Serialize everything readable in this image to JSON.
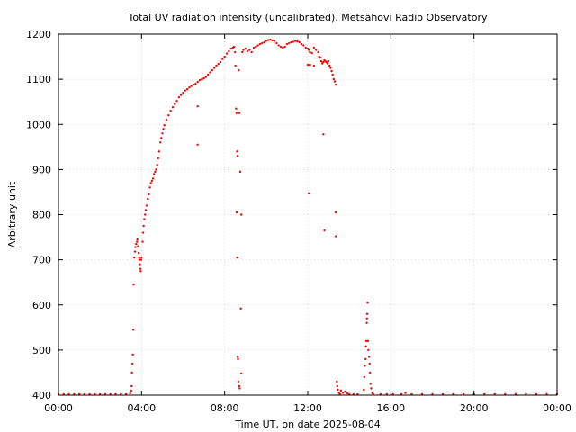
{
  "chart_data": {
    "type": "scatter",
    "title": "Total UV radiation intensity (uncalibrated). Metsähovi Radio Observatory",
    "xlabel": "Time UT, on date 2025-08-04",
    "ylabel": "Arbitrary unit",
    "xlim": [
      0,
      24
    ],
    "ylim": [
      400,
      1200
    ],
    "x_ticks": [
      {
        "value": 0,
        "label": "00:00"
      },
      {
        "value": 4,
        "label": "04:00"
      },
      {
        "value": 8,
        "label": "08:00"
      },
      {
        "value": 12,
        "label": "12:00"
      },
      {
        "value": 16,
        "label": "16:00"
      },
      {
        "value": 20,
        "label": "20:00"
      },
      {
        "value": 24,
        "label": "00:00"
      }
    ],
    "y_ticks": [
      400,
      500,
      600,
      700,
      800,
      900,
      1000,
      1100,
      1200
    ],
    "grid": true,
    "series": [
      {
        "color": "#ff0000",
        "points": [
          [
            0.0,
            402
          ],
          [
            0.25,
            402
          ],
          [
            0.5,
            402
          ],
          [
            0.75,
            402
          ],
          [
            1.0,
            402
          ],
          [
            1.25,
            402
          ],
          [
            1.5,
            402
          ],
          [
            1.75,
            402
          ],
          [
            2.0,
            402
          ],
          [
            2.25,
            402
          ],
          [
            2.5,
            402
          ],
          [
            2.75,
            402
          ],
          [
            3.0,
            402
          ],
          [
            3.25,
            402
          ],
          [
            3.45,
            404
          ],
          [
            3.5,
            410
          ],
          [
            3.52,
            420
          ],
          [
            3.54,
            450
          ],
          [
            3.56,
            470
          ],
          [
            3.58,
            490
          ],
          [
            3.6,
            545
          ],
          [
            3.62,
            645
          ],
          [
            3.65,
            705
          ],
          [
            3.68,
            718
          ],
          [
            3.7,
            728
          ],
          [
            3.74,
            735
          ],
          [
            3.78,
            740
          ],
          [
            3.8,
            745
          ],
          [
            3.83,
            730
          ],
          [
            3.86,
            715
          ],
          [
            3.88,
            705
          ],
          [
            3.9,
            700
          ],
          [
            3.92,
            690
          ],
          [
            3.94,
            680
          ],
          [
            3.96,
            675
          ],
          [
            3.98,
            700
          ],
          [
            4.0,
            705
          ],
          [
            4.05,
            740
          ],
          [
            4.08,
            760
          ],
          [
            4.1,
            775
          ],
          [
            4.13,
            790
          ],
          [
            4.17,
            800
          ],
          [
            4.2,
            810
          ],
          [
            4.25,
            820
          ],
          [
            4.3,
            835
          ],
          [
            4.35,
            845
          ],
          [
            4.4,
            860
          ],
          [
            4.45,
            870
          ],
          [
            4.5,
            875
          ],
          [
            4.55,
            880
          ],
          [
            4.6,
            890
          ],
          [
            4.65,
            895
          ],
          [
            4.7,
            900
          ],
          [
            4.75,
            910
          ],
          [
            4.8,
            925
          ],
          [
            4.85,
            940
          ],
          [
            4.9,
            960
          ],
          [
            4.95,
            970
          ],
          [
            5.0,
            980
          ],
          [
            5.05,
            990
          ],
          [
            5.1,
            998
          ],
          [
            5.2,
            1010
          ],
          [
            5.3,
            1020
          ],
          [
            5.4,
            1030
          ],
          [
            5.5,
            1038
          ],
          [
            5.6,
            1045
          ],
          [
            5.7,
            1052
          ],
          [
            5.8,
            1060
          ],
          [
            5.9,
            1065
          ],
          [
            6.0,
            1070
          ],
          [
            6.1,
            1075
          ],
          [
            6.2,
            1078
          ],
          [
            6.3,
            1082
          ],
          [
            6.4,
            1085
          ],
          [
            6.5,
            1088
          ],
          [
            6.6,
            1090
          ],
          [
            6.7,
            1094
          ],
          [
            6.8,
            1098
          ],
          [
            6.9,
            1100
          ],
          [
            6.7,
            1040
          ],
          [
            6.7,
            955
          ],
          [
            7.0,
            1102
          ],
          [
            7.1,
            1105
          ],
          [
            7.2,
            1110
          ],
          [
            7.3,
            1115
          ],
          [
            7.4,
            1120
          ],
          [
            7.5,
            1125
          ],
          [
            7.6,
            1130
          ],
          [
            7.7,
            1134
          ],
          [
            7.8,
            1138
          ],
          [
            7.9,
            1145
          ],
          [
            8.0,
            1150
          ],
          [
            8.1,
            1157
          ],
          [
            8.2,
            1162
          ],
          [
            8.3,
            1168
          ],
          [
            8.4,
            1170
          ],
          [
            8.45,
            1172
          ],
          [
            8.5,
            1160
          ],
          [
            8.52,
            1130
          ],
          [
            8.55,
            1035
          ],
          [
            8.57,
            1025
          ],
          [
            8.6,
            940
          ],
          [
            8.62,
            930
          ],
          [
            8.58,
            805
          ],
          [
            8.6,
            705
          ],
          [
            8.62,
            485
          ],
          [
            8.64,
            480
          ],
          [
            8.66,
            430
          ],
          [
            8.7,
            420
          ],
          [
            8.72,
            415
          ],
          [
            8.68,
            1120
          ],
          [
            8.7,
            1025
          ],
          [
            8.75,
            895
          ],
          [
            8.8,
            800
          ],
          [
            8.78,
            592
          ],
          [
            8.8,
            448
          ],
          [
            8.85,
            1160
          ],
          [
            8.9,
            1165
          ],
          [
            9.0,
            1168
          ],
          [
            9.1,
            1162
          ],
          [
            9.2,
            1165
          ],
          [
            9.3,
            1160
          ],
          [
            9.4,
            1170
          ],
          [
            9.5,
            1172
          ],
          [
            9.6,
            1175
          ],
          [
            9.7,
            1178
          ],
          [
            9.8,
            1180
          ],
          [
            9.9,
            1182
          ],
          [
            10.0,
            1185
          ],
          [
            10.1,
            1187
          ],
          [
            10.2,
            1188
          ],
          [
            10.3,
            1186
          ],
          [
            10.4,
            1185
          ],
          [
            10.5,
            1180
          ],
          [
            10.6,
            1175
          ],
          [
            10.7,
            1172
          ],
          [
            10.8,
            1170
          ],
          [
            10.9,
            1172
          ],
          [
            11.0,
            1178
          ],
          [
            11.1,
            1180
          ],
          [
            11.2,
            1182
          ],
          [
            11.3,
            1183
          ],
          [
            11.4,
            1185
          ],
          [
            11.5,
            1184
          ],
          [
            11.6,
            1182
          ],
          [
            11.7,
            1178
          ],
          [
            11.8,
            1175
          ],
          [
            11.9,
            1170
          ],
          [
            12.0,
            1168
          ],
          [
            12.05,
            1165
          ],
          [
            12.1,
            1160
          ],
          [
            12.2,
            1158
          ],
          [
            12.3,
            1170
          ],
          [
            12.4,
            1165
          ],
          [
            12.5,
            1160
          ],
          [
            12.55,
            1150
          ],
          [
            12.0,
            1132
          ],
          [
            12.1,
            1132
          ],
          [
            12.3,
            1130
          ],
          [
            12.05,
            847
          ],
          [
            12.6,
            1148
          ],
          [
            12.65,
            1140
          ],
          [
            12.7,
            1135
          ],
          [
            12.75,
            1138
          ],
          [
            12.8,
            1142
          ],
          [
            12.85,
            1140
          ],
          [
            12.9,
            1138
          ],
          [
            12.95,
            1135
          ],
          [
            13.0,
            1140
          ],
          [
            13.05,
            1130
          ],
          [
            13.1,
            1125
          ],
          [
            13.15,
            1118
          ],
          [
            13.2,
            1110
          ],
          [
            13.25,
            1100
          ],
          [
            13.3,
            1095
          ],
          [
            13.35,
            1088
          ],
          [
            12.75,
            978
          ],
          [
            12.8,
            765
          ],
          [
            13.35,
            805
          ],
          [
            13.35,
            752
          ],
          [
            13.4,
            430
          ],
          [
            13.42,
            420
          ],
          [
            13.45,
            412
          ],
          [
            13.5,
            405
          ],
          [
            13.55,
            402
          ],
          [
            13.6,
            410
          ],
          [
            13.7,
            405
          ],
          [
            13.8,
            408
          ],
          [
            13.9,
            404
          ],
          [
            14.0,
            402
          ],
          [
            14.2,
            402
          ],
          [
            14.4,
            402
          ],
          [
            14.7,
            412
          ],
          [
            14.72,
            440
          ],
          [
            14.75,
            465
          ],
          [
            14.78,
            480
          ],
          [
            14.8,
            508
          ],
          [
            14.82,
            520
          ],
          [
            14.84,
            560
          ],
          [
            14.85,
            570
          ],
          [
            14.86,
            580
          ],
          [
            14.88,
            605
          ],
          [
            14.9,
            520
          ],
          [
            14.92,
            500
          ],
          [
            14.95,
            485
          ],
          [
            14.98,
            470
          ],
          [
            15.0,
            450
          ],
          [
            15.02,
            425
          ],
          [
            15.05,
            415
          ],
          [
            15.1,
            405
          ],
          [
            15.15,
            402
          ],
          [
            15.5,
            402
          ],
          [
            15.8,
            402
          ],
          [
            16.1,
            402
          ],
          [
            16.5,
            402
          ],
          [
            16.7,
            405
          ],
          [
            17.0,
            402
          ],
          [
            17.5,
            402
          ],
          [
            18.0,
            402
          ],
          [
            18.5,
            402
          ],
          [
            19.0,
            402
          ],
          [
            19.5,
            402
          ],
          [
            20.0,
            402
          ],
          [
            20.5,
            402
          ],
          [
            21.0,
            402
          ],
          [
            21.5,
            402
          ],
          [
            22.0,
            402
          ],
          [
            22.5,
            402
          ],
          [
            23.0,
            402
          ],
          [
            23.5,
            402
          ],
          [
            24.0,
            402
          ]
        ]
      }
    ]
  }
}
